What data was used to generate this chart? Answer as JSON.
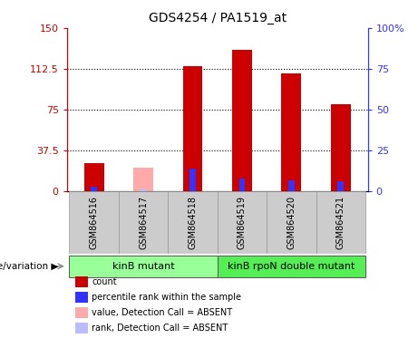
{
  "title": "GDS4254 / PA1519_at",
  "samples": [
    "GSM864516",
    "GSM864517",
    "GSM864518",
    "GSM864519",
    "GSM864520",
    "GSM864521"
  ],
  "count_values": [
    26,
    0,
    115,
    130,
    108,
    80
  ],
  "rank_values": [
    3,
    0,
    14,
    8,
    7,
    6
  ],
  "absent_count_values": [
    0,
    22,
    0,
    0,
    0,
    0
  ],
  "absent_rank_values": [
    0,
    2,
    0,
    0,
    0,
    0
  ],
  "count_color": "#cc0000",
  "rank_color": "#3333ff",
  "absent_count_color": "#ffaaaa",
  "absent_rank_color": "#bbbbff",
  "left_ylim": [
    0,
    150
  ],
  "right_ylim": [
    0,
    100
  ],
  "left_yticks": [
    0,
    37.5,
    75,
    112.5,
    150
  ],
  "right_yticks": [
    0,
    25,
    50,
    75,
    100
  ],
  "left_yticklabels": [
    "0",
    "37.5",
    "75",
    "112.5",
    "150"
  ],
  "right_yticklabels": [
    "0",
    "25",
    "50",
    "75",
    "100%"
  ],
  "grid_lines": [
    37.5,
    75,
    112.5
  ],
  "group1_label": "kinB mutant",
  "group2_label": "kinB rpoN double mutant",
  "group1_indices": [
    0,
    1,
    2
  ],
  "group2_indices": [
    3,
    4,
    5
  ],
  "group1_color": "#99ff99",
  "group2_color": "#55ee55",
  "genotype_label": "genotype/variation",
  "bar_width": 0.4,
  "legend_items": [
    {
      "label": "count",
      "color": "#cc0000"
    },
    {
      "label": "percentile rank within the sample",
      "color": "#3333ff"
    },
    {
      "label": "value, Detection Call = ABSENT",
      "color": "#ffaaaa"
    },
    {
      "label": "rank, Detection Call = ABSENT",
      "color": "#bbbbff"
    }
  ],
  "bg_color": "#cccccc",
  "plot_bg": "#ffffff"
}
